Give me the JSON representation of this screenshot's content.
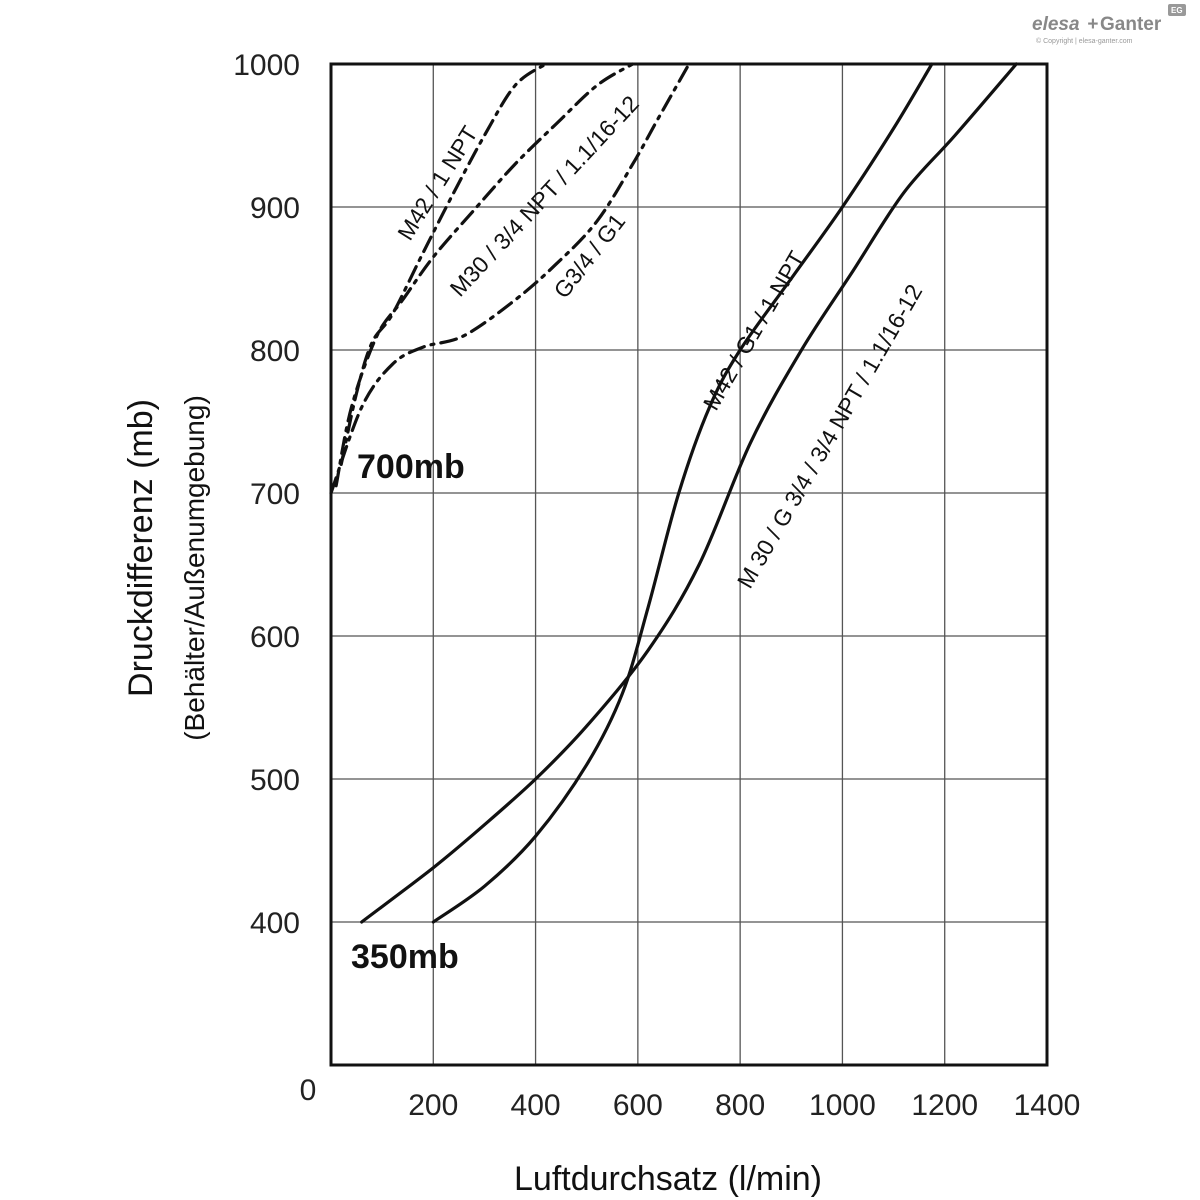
{
  "brand": {
    "logo_elesa": "elesa",
    "logo_plus": "+",
    "logo_ganter": "Ganter",
    "badge": "EG",
    "copyright": "© Copyright | elesa-ganter.com"
  },
  "chart_data": {
    "type": "line",
    "title": "",
    "xlabel": "Luftdurchsatz (l/min)",
    "ylabel": "Druckdifferenz (mb)",
    "ylabel_sub": "(Behälter/Außenumgebung)",
    "xlim": [
      0,
      1400
    ],
    "ylim": [
      300,
      1000
    ],
    "x_ticks": [
      200,
      400,
      600,
      800,
      1000,
      1200,
      1400
    ],
    "y_ticks": [
      400,
      500,
      600,
      700,
      800,
      900,
      1000
    ],
    "origin_label": "0",
    "grid": true,
    "annotations": [
      {
        "text": "700mb",
        "x": 55,
        "y": 710
      },
      {
        "text": "350mb",
        "x": 40,
        "y": 375
      }
    ],
    "series": [
      {
        "name": "M42 / 1 NPT",
        "style": "dashdot",
        "x": [
          20,
          50,
          80,
          120,
          180,
          240,
          300,
          360,
          420
        ],
        "y": [
          720,
          770,
          805,
          825,
          868,
          910,
          950,
          985,
          1000
        ]
      },
      {
        "name": "M30 / 3/4 NPT / 1.1/16-12",
        "style": "dashdot",
        "x": [
          10,
          40,
          90,
          140,
          200,
          280,
          360,
          440,
          520,
          590
        ],
        "y": [
          705,
          760,
          810,
          835,
          865,
          898,
          930,
          958,
          985,
          1000
        ]
      },
      {
        "name": "G3/4 / G1",
        "style": "dashdot",
        "x": [
          0,
          60,
          120,
          180,
          260,
          360,
          440,
          520,
          590,
          640,
          700
        ],
        "y": [
          700,
          760,
          790,
          802,
          810,
          835,
          860,
          890,
          930,
          962,
          1000
        ]
      },
      {
        "name": "M42 / G1 / 1 NPT",
        "style": "solid",
        "x": [
          200,
          300,
          400,
          500,
          570,
          620,
          680,
          740,
          800,
          900,
          1000,
          1100,
          1175
        ],
        "y": [
          400,
          425,
          460,
          510,
          560,
          620,
          700,
          760,
          800,
          850,
          900,
          955,
          1000
        ]
      },
      {
        "name": "M 30 / G 3/4 / 3/4 NPT / 1.1/16-12",
        "style": "solid",
        "x": [
          60,
          200,
          300,
          400,
          500,
          620,
          720,
          820,
          920,
          1020,
          1120,
          1220,
          1340
        ],
        "y": [
          400,
          438,
          468,
          500,
          537,
          590,
          650,
          735,
          800,
          855,
          910,
          950,
          1000
        ]
      }
    ]
  }
}
